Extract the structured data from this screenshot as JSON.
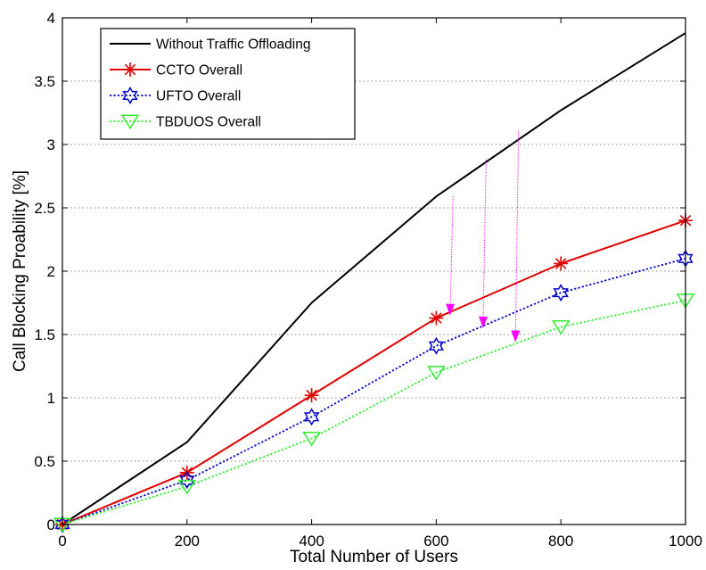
{
  "chart_data": {
    "type": "line",
    "title": "",
    "xlabel": "Total Number of Users",
    "ylabel": "Call Blocking Proability [%]",
    "xlim": [
      0,
      1000
    ],
    "ylim": [
      0,
      4
    ],
    "x_ticks": [
      0,
      200,
      400,
      600,
      800,
      1000
    ],
    "y_ticks": [
      0,
      0.5,
      1,
      1.5,
      2,
      2.5,
      3,
      3.5,
      4
    ],
    "x_tick_labels": [
      "0",
      "200",
      "400",
      "600",
      "800",
      "1000"
    ],
    "y_tick_labels": [
      "0",
      "0.5",
      "1",
      "1.5",
      "2",
      "2.5",
      "3",
      "3.5",
      "4"
    ],
    "grid": "horizontal dotted",
    "legend_position": "top-left",
    "x": [
      0,
      200,
      400,
      600,
      800,
      1000
    ],
    "series": [
      {
        "name": "Without Traffic Offloading",
        "values": [
          0,
          0.65,
          1.75,
          2.59,
          3.27,
          3.88
        ],
        "color": "#000000",
        "line_style": "solid",
        "marker": "none"
      },
      {
        "name": "CCTO Overall",
        "values": [
          0,
          0.41,
          1.02,
          1.63,
          2.06,
          2.4
        ],
        "color": "#e00000",
        "line_style": "solid",
        "marker": "asterisk"
      },
      {
        "name": "UFTO Overall",
        "values": [
          0,
          0.35,
          0.85,
          1.41,
          1.83,
          2.1
        ],
        "color": "#0000cc",
        "line_style": "dotted",
        "marker": "hexagram"
      },
      {
        "name": "TBDUOS Overall",
        "values": [
          0,
          0.3,
          0.68,
          1.2,
          1.56,
          1.77
        ],
        "color": "#33ee33",
        "line_style": "dotted",
        "marker": "triangle-down"
      }
    ],
    "annotations": [
      {
        "type": "arrow",
        "color": "#ff00ff",
        "from": [
          627,
          2.59
        ],
        "to": [
          622,
          1.65
        ]
      },
      {
        "type": "arrow",
        "color": "#ff00ff",
        "from": [
          680,
          2.88
        ],
        "to": [
          675,
          1.55
        ]
      },
      {
        "type": "arrow",
        "color": "#ff00ff",
        "from": [
          732,
          3.1
        ],
        "to": [
          727,
          1.44
        ]
      }
    ]
  }
}
